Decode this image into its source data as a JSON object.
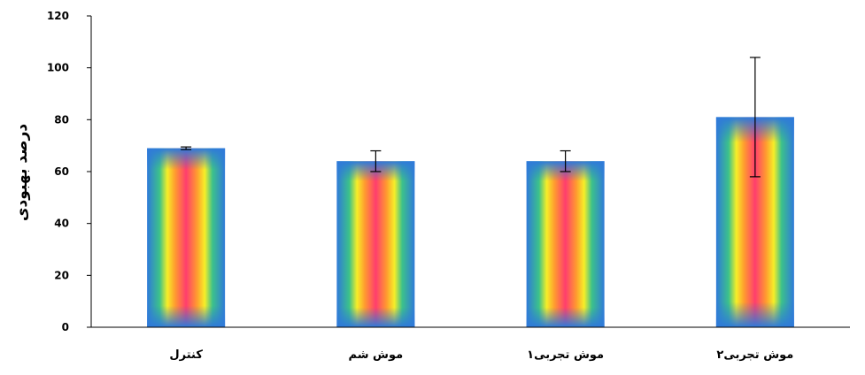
{
  "chart_data": {
    "type": "bar",
    "title": "",
    "xlabel": "",
    "ylabel": "درصد بهبودی",
    "categories": [
      "کنترل",
      "موش شم",
      "موش تجربی۱",
      "موش تجربی۲"
    ],
    "series": [
      {
        "values": [
          69,
          64,
          64,
          81
        ],
        "error": [
          0.5,
          4,
          4,
          23
        ]
      }
    ],
    "ylim": [
      0,
      120
    ],
    "yticks": [
      0,
      20,
      40,
      60,
      80,
      100,
      120
    ],
    "grid": false,
    "legend": "none"
  },
  "colors": {
    "bar_outer": "#2f7ad9",
    "bar_mid": "#3cc28a",
    "bar_yellow": "#f6ee28",
    "bar_orange": "#ff9b2f",
    "bar_inner": "#ff3d6e",
    "axis": "#000000"
  }
}
